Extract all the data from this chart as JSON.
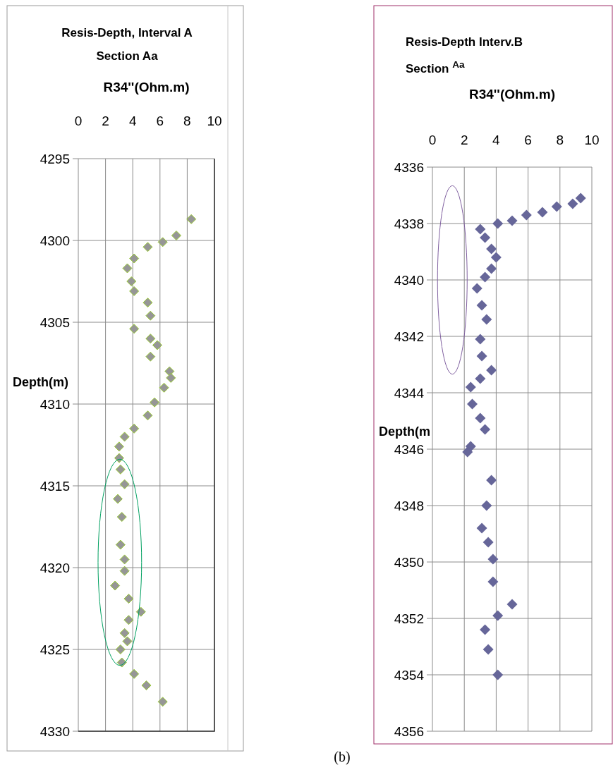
{
  "chart_data": [
    {
      "type": "scatter",
      "title": "Resis-Depth, Interval A",
      "subtitle": "Section Aa",
      "xlabel": "R34''(Ohm.m)",
      "ylabel": "Depth(m)",
      "xlim": [
        0,
        10
      ],
      "xticks": [
        0,
        2,
        4,
        6,
        8,
        10
      ],
      "ylim": [
        4330,
        4295
      ],
      "yticks": [
        4295,
        4300,
        4305,
        4310,
        4315,
        4320,
        4325,
        4330
      ],
      "grid": true,
      "marker": "diamond",
      "series": [
        {
          "color": "#969696",
          "x": [
            8.3,
            7.2,
            6.2,
            5.1,
            4.1,
            3.6,
            3.9,
            4.1,
            5.1,
            5.3,
            4.1,
            5.3,
            5.8,
            5.3,
            6.7,
            6.8,
            6.3,
            5.6,
            5.1,
            4.1,
            3.4,
            3.0,
            3.0,
            3.1,
            3.4,
            2.9,
            3.2,
            3.1,
            3.4,
            3.4,
            2.7,
            3.7,
            4.6,
            3.7,
            3.4,
            3.6,
            3.1,
            3.2,
            4.1,
            5.0,
            6.2
          ],
          "values": [
            4298.7,
            4299.7,
            4300.1,
            4300.4,
            4301.1,
            4301.7,
            4302.5,
            4303.1,
            4303.8,
            4304.6,
            4305.4,
            4306.0,
            4306.4,
            4307.1,
            4308.0,
            4308.4,
            4309.0,
            4309.9,
            4310.7,
            4311.5,
            4312.0,
            4312.6,
            4313.3,
            4314.0,
            4314.9,
            4315.8,
            4316.9,
            4318.6,
            4319.5,
            4320.2,
            4321.1,
            4321.9,
            4322.7,
            4323.2,
            4324.0,
            4324.5,
            4325.0,
            4325.8,
            4326.5,
            4327.2,
            4328.2
          ]
        }
      ]
    },
    {
      "type": "scatter",
      "title": "Resis-Depth Interv.B",
      "subtitle": "Section $^{Aa}$",
      "xlabel": "R34''(Ohm.m)",
      "ylabel": "Depth(m",
      "xlim": [
        0,
        10
      ],
      "xticks": [
        0,
        2,
        4,
        6,
        8,
        10
      ],
      "ylim": [
        4356,
        4336
      ],
      "yticks": [
        4336,
        4338,
        4340,
        4342,
        4344,
        4346,
        4348,
        4350,
        4352,
        4354,
        4356
      ],
      "grid": true,
      "marker": "diamond",
      "annotations": [
        "(b)"
      ],
      "series": [
        {
          "color": "#666699",
          "x": [
            9.3,
            8.8,
            7.8,
            6.9,
            5.9,
            5.0,
            4.1,
            3.0,
            3.3,
            3.7,
            4.0,
            3.7,
            3.3,
            2.8,
            3.1,
            3.4,
            3.0,
            3.1,
            3.7,
            3.0,
            2.4,
            2.5,
            3.0,
            3.3,
            2.4,
            2.2,
            3.7,
            3.4,
            3.1,
            3.5,
            3.8,
            3.8,
            5.0,
            4.1,
            3.3,
            3.5,
            4.1
          ],
          "values": [
            4337.1,
            4337.3,
            4337.4,
            4337.6,
            4337.7,
            4337.9,
            4338.0,
            4338.2,
            4338.5,
            4338.9,
            4339.2,
            4339.6,
            4339.9,
            4340.3,
            4340.9,
            4341.4,
            4342.1,
            4342.7,
            4343.2,
            4343.5,
            4343.8,
            4344.4,
            4344.9,
            4345.3,
            4345.9,
            4346.1,
            4347.1,
            4348.0,
            4348.8,
            4349.3,
            4349.9,
            4350.7,
            4351.5,
            4351.9,
            4352.4,
            4353.1,
            4354.0
          ]
        }
      ]
    }
  ]
}
